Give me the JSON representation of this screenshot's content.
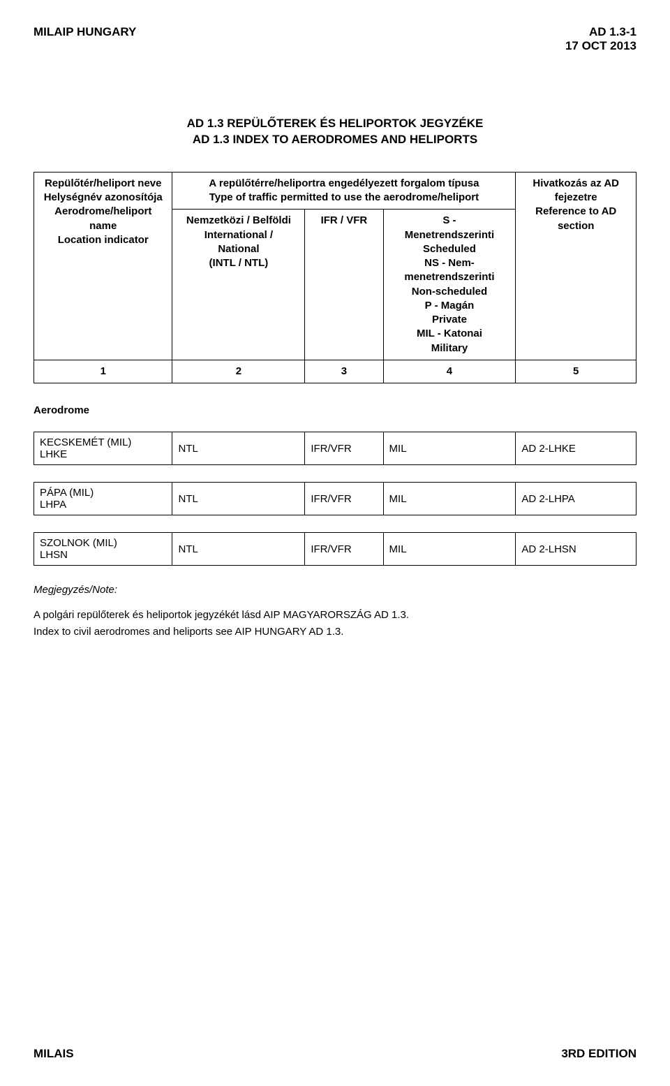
{
  "header": {
    "pub_left": "MILAIP HUNGARY",
    "ref_right": "AD 1.3-1",
    "date_right": "17 OCT 2013"
  },
  "title": {
    "line1": "AD 1.3 REPÜLŐTEREK ÉS HELIPORTOK JEGYZÉKE",
    "line2": "AD 1.3 INDEX TO AERODROMES AND HELIPORTS"
  },
  "table_head": {
    "col1": "Repülőtér/heliport neve\nHelységnév azonosítója\nAerodrome/heliport name\nLocation indicator",
    "col2_top": "A repülőtérre/heliportra engedélyezett forgalom típusa\nType of traffic permitted to use the aerodrome/heliport",
    "col2a": "Nemzetközi / Belföldi\nInternational /\nNational\n(INTL / NTL)",
    "col2b": "IFR / VFR",
    "col2c": "S -\nMenetrendszerinti\nScheduled\nNS - Nem-\nmenetrendszerinti\nNon-scheduled\nP - Magán\nPrivate\nMIL - Katonai\nMilitary",
    "col5": "Hivatkozás az AD\nfejezetre\nReference to AD\nsection",
    "num1": "1",
    "num2": "2",
    "num3": "3",
    "num4": "4",
    "num5": "5"
  },
  "section_label": "Aerodrome",
  "rows": [
    {
      "name": "KECSKEMÉT (MIL)",
      "code": "LHKE",
      "c2": "NTL",
      "c3": "IFR/VFR",
      "c4": "MIL",
      "c5": "AD 2-LHKE"
    },
    {
      "name": "PÁPA (MIL)",
      "code": "LHPA",
      "c2": "NTL",
      "c3": "IFR/VFR",
      "c4": "MIL",
      "c5": "AD 2-LHPA"
    },
    {
      "name": "SZOLNOK (MIL)",
      "code": "LHSN",
      "c2": "NTL",
      "c3": "IFR/VFR",
      "c4": "MIL",
      "c5": "AD 2-LHSN"
    }
  ],
  "note": {
    "title": "Megjegyzés/Note:",
    "p1": "A polgári repülőterek és heliportok jegyzékét lásd AIP MAGYARORSZÁG AD 1.3.",
    "p2": "Index to civil aerodromes and heliports see AIP HUNGARY AD 1.3."
  },
  "footer": {
    "left": "MILAIS",
    "right": "3RD EDITION"
  }
}
